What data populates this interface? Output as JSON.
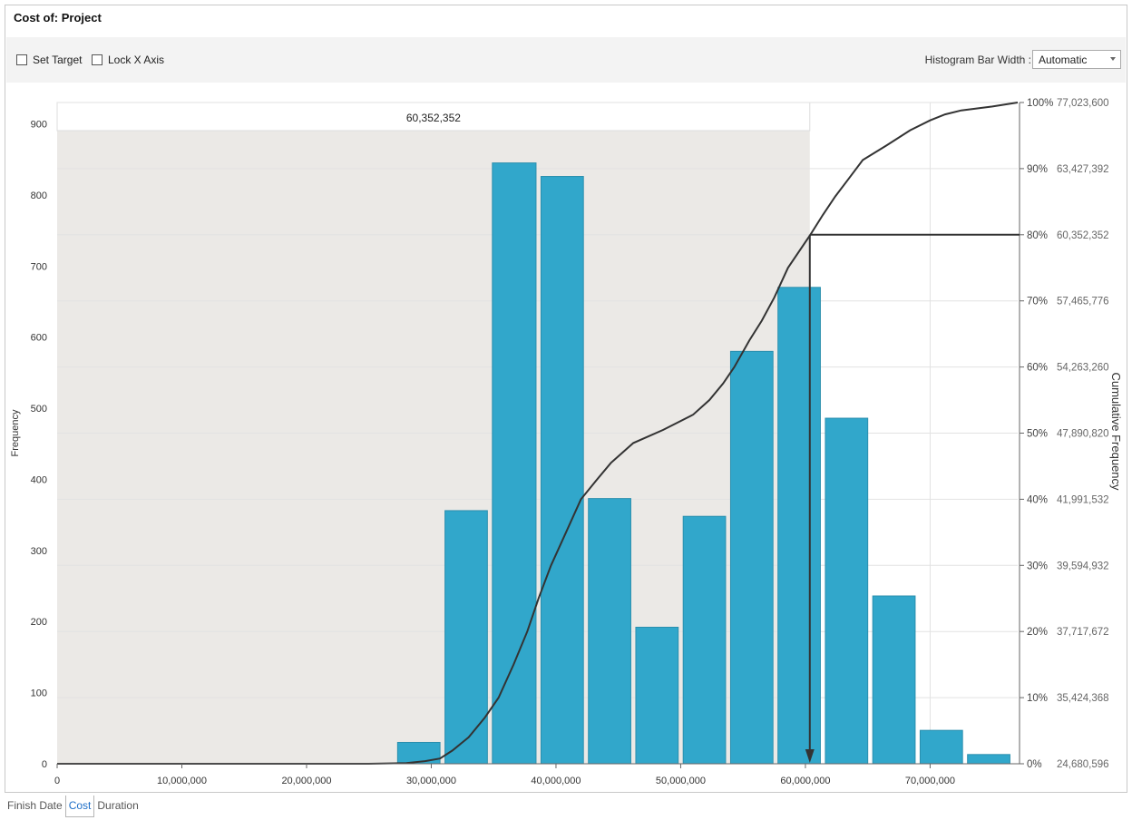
{
  "window": {
    "title": "Cost of: Project"
  },
  "toolbar": {
    "set_target_label": "Set Target",
    "lock_x_axis_label": "Lock X Axis",
    "bar_width_label": "Histogram Bar Width :",
    "bar_width_value": "Automatic"
  },
  "tabs": [
    {
      "label": "Finish Date",
      "active": false
    },
    {
      "label": "Cost",
      "active": true
    },
    {
      "label": "Duration",
      "active": false
    }
  ],
  "colors": {
    "bar": "#31a7cb",
    "bar_edge": "#2a8fae",
    "shade": "#ebe9e6",
    "curve": "#333333"
  },
  "chart_data": {
    "type": "bar",
    "xlabel": "",
    "ylabel": "Frequency",
    "y2label": "Cumulative Frequency",
    "xlim": [
      0,
      77023600
    ],
    "ylim": [
      0,
      930
    ],
    "x_ticks": [
      0,
      10000000,
      20000000,
      30000000,
      40000000,
      50000000,
      60000000,
      70000000
    ],
    "x_tick_labels": [
      "0",
      "10,000,000",
      "20,000,000",
      "30,000,000",
      "40,000,000",
      "50,000,000",
      "60,000,000",
      "70,000,000"
    ],
    "y_ticks": [
      0,
      100,
      200,
      300,
      400,
      500,
      600,
      700,
      800,
      900
    ],
    "y_tick_labels": [
      "0",
      "100",
      "200",
      "300",
      "400",
      "500",
      "600",
      "700",
      "800",
      "900"
    ],
    "cumulative_ticks": [
      {
        "pct_label": "0%",
        "value_label": "24,680,596"
      },
      {
        "pct_label": "10%",
        "value_label": "35,424,368"
      },
      {
        "pct_label": "20%",
        "value_label": "37,717,672"
      },
      {
        "pct_label": "30%",
        "value_label": "39,594,932"
      },
      {
        "pct_label": "40%",
        "value_label": "41,991,532"
      },
      {
        "pct_label": "50%",
        "value_label": "47,890,820"
      },
      {
        "pct_label": "60%",
        "value_label": "54,263,260"
      },
      {
        "pct_label": "70%",
        "value_label": "57,465,776"
      },
      {
        "pct_label": "80%",
        "value_label": "60,352,352"
      },
      {
        "pct_label": "90%",
        "value_label": "63,427,392"
      },
      {
        "pct_label": "100%",
        "value_label": "77,023,600"
      }
    ],
    "bars": [
      {
        "x0": 27300000,
        "x1": 30700000,
        "value": 30
      },
      {
        "x0": 31100000,
        "x1": 34500000,
        "value": 356
      },
      {
        "x0": 34900000,
        "x1": 38400000,
        "value": 845
      },
      {
        "x0": 38800000,
        "x1": 42200000,
        "value": 826
      },
      {
        "x0": 42600000,
        "x1": 46000000,
        "value": 373
      },
      {
        "x0": 46400000,
        "x1": 49800000,
        "value": 192
      },
      {
        "x0": 50200000,
        "x1": 53600000,
        "value": 348
      },
      {
        "x0": 54000000,
        "x1": 57400000,
        "value": 580
      },
      {
        "x0": 57800000,
        "x1": 61200000,
        "value": 670
      },
      {
        "x0": 61600000,
        "x1": 65000000,
        "value": 486
      },
      {
        "x0": 65400000,
        "x1": 68800000,
        "value": 236
      },
      {
        "x0": 69200000,
        "x1": 72600000,
        "value": 47
      },
      {
        "x0": 73000000,
        "x1": 76400000,
        "value": 13
      }
    ],
    "cumulative_curve": [
      [
        0,
        0
      ],
      [
        20000000,
        0
      ],
      [
        25000000,
        0
      ],
      [
        28000000,
        0.1
      ],
      [
        29500000,
        0.4
      ],
      [
        30700000,
        0.8
      ],
      [
        31700000,
        2
      ],
      [
        33000000,
        4
      ],
      [
        34300000,
        7
      ],
      [
        35400000,
        10
      ],
      [
        36600000,
        15
      ],
      [
        37700000,
        20
      ],
      [
        38600000,
        25
      ],
      [
        39600000,
        30
      ],
      [
        40800000,
        35
      ],
      [
        42000000,
        40
      ],
      [
        43300000,
        43
      ],
      [
        44400000,
        45.5
      ],
      [
        46200000,
        48.5
      ],
      [
        48600000,
        50.5
      ],
      [
        51000000,
        52.8
      ],
      [
        52300000,
        55
      ],
      [
        53400000,
        57.5
      ],
      [
        54300000,
        60
      ],
      [
        55500000,
        64
      ],
      [
        56500000,
        67
      ],
      [
        57500000,
        70.5
      ],
      [
        58600000,
        75
      ],
      [
        60400000,
        80
      ],
      [
        61400000,
        83
      ],
      [
        62400000,
        85.8
      ],
      [
        63400000,
        88.3
      ],
      [
        64600000,
        91.3
      ],
      [
        66500000,
        93.5
      ],
      [
        68400000,
        95.8
      ],
      [
        70000000,
        97.3
      ],
      [
        71200000,
        98.2
      ],
      [
        72500000,
        98.8
      ],
      [
        75000000,
        99.4
      ],
      [
        77023600,
        100
      ]
    ],
    "target": {
      "value": 60352352,
      "value_label": "60,352,352",
      "percentile": 80
    },
    "grid": true,
    "legend": "none"
  }
}
